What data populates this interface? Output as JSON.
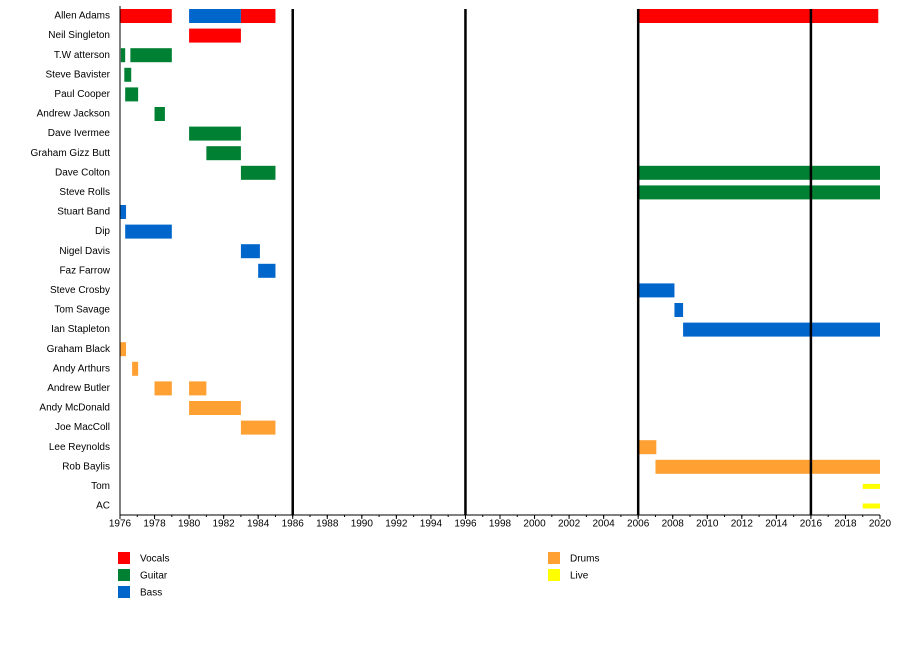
{
  "chart_data": {
    "type": "timeline",
    "categories": [
      "Allen Adams",
      "Neil Singleton",
      "T.W atterson",
      "Steve Bavister",
      "Paul Cooper",
      "Andrew Jackson",
      "Dave Ivermee",
      "Graham Gizz Butt",
      "Dave Colton",
      "Steve Rolls",
      "Stuart Band",
      "Dip",
      "Nigel Davis",
      "Faz Farrow",
      "Steve Crosby",
      "Tom Savage",
      "Ian Stapleton",
      "Graham Black",
      "Andy Arthurs",
      "Andrew Butler",
      "Andy McDonald",
      "Joe MacColl",
      "Lee Reynolds",
      "Rob Baylis",
      "Tom",
      "AC"
    ],
    "xlim": [
      1976,
      2020
    ],
    "xticks": [
      1976,
      1978,
      1980,
      1982,
      1984,
      1986,
      1988,
      1990,
      1992,
      1994,
      1996,
      1998,
      2000,
      2002,
      2004,
      2006,
      2008,
      2010,
      2012,
      2014,
      2016,
      2018,
      2020
    ],
    "markers": [
      1986,
      1996,
      2006,
      2016
    ],
    "series": [
      {
        "name": "Vocals",
        "color": "#ff0000",
        "values": [
          [
            [
              1976,
              1979
            ],
            [
              1983,
              1985
            ],
            [
              2006,
              2019.9
            ]
          ],
          [
            [
              1980,
              1983
            ]
          ],
          [],
          [],
          [],
          [],
          [],
          [],
          [],
          [],
          [],
          [],
          [],
          [],
          [],
          [],
          [],
          [],
          [],
          [],
          [],
          [],
          [],
          [],
          [],
          []
        ]
      },
      {
        "name": "Guitar",
        "color": "#008033",
        "values": [
          [],
          [],
          [
            [
              1976.05,
              1976.3
            ],
            [
              1976.6,
              1979
            ]
          ],
          [
            [
              1976.25,
              1976.65
            ]
          ],
          [
            [
              1976.3,
              1977.05
            ]
          ],
          [
            [
              1978,
              1978.6
            ]
          ],
          [
            [
              1980,
              1983
            ]
          ],
          [
            [
              1981,
              1983
            ]
          ],
          [
            [
              1983,
              1985
            ],
            [
              2006,
              2020
            ]
          ],
          [
            [
              2006,
              2020
            ]
          ],
          [],
          [],
          [],
          [],
          [],
          [],
          [],
          [],
          [],
          [],
          [],
          [],
          [],
          [],
          [],
          []
        ]
      },
      {
        "name": "Bass",
        "color": "#0066cc",
        "values": [
          [
            [
              1980,
              1983
            ]
          ],
          [],
          [],
          [],
          [],
          [],
          [],
          [],
          [],
          [],
          [
            [
              1976,
              1976.35
            ]
          ],
          [
            [
              1976.3,
              1979
            ]
          ],
          [
            [
              1983,
              1984.1
            ]
          ],
          [
            [
              1984,
              1985
            ]
          ],
          [
            [
              2006,
              2008.1
            ]
          ],
          [
            [
              2008.1,
              2008.6
            ]
          ],
          [
            [
              2008.6,
              2020
            ]
          ],
          [],
          [],
          [],
          [],
          [],
          [],
          [],
          [],
          []
        ]
      },
      {
        "name": "Drums",
        "color": "#ffa033",
        "values": [
          [],
          [],
          [],
          [],
          [],
          [],
          [],
          [],
          [],
          [],
          [],
          [],
          [],
          [],
          [],
          [],
          [],
          [
            [
              1976,
              1976.35
            ]
          ],
          [
            [
              1976.7,
              1977.05
            ]
          ],
          [
            [
              1978,
              1979
            ],
            [
              1980,
              1981
            ]
          ],
          [
            [
              1980,
              1983
            ]
          ],
          [
            [
              1983,
              1985
            ]
          ],
          [
            [
              2006,
              2007.05
            ]
          ],
          [
            [
              2007,
              2020
            ]
          ],
          [],
          []
        ]
      },
      {
        "name": "Live",
        "color": "#ffff00",
        "values": [
          [],
          [],
          [],
          [],
          [],
          [],
          [],
          [],
          [],
          [],
          [],
          [],
          [],
          [],
          [],
          [],
          [],
          [],
          [],
          [],
          [],
          [],
          [],
          [],
          [
            [
              2019,
              2020
            ]
          ],
          [
            [
              2019,
              2020
            ]
          ]
        ]
      }
    ]
  }
}
